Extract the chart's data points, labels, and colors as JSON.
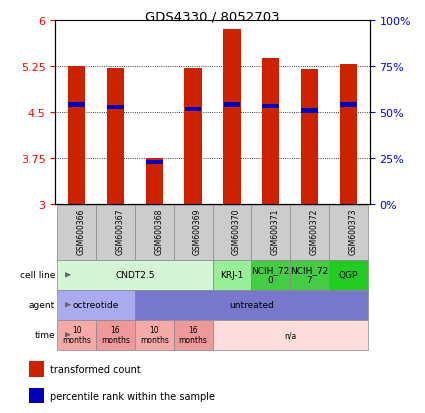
{
  "title": "GDS4330 / 8052703",
  "samples": [
    "GSM600366",
    "GSM600367",
    "GSM600368",
    "GSM600369",
    "GSM600370",
    "GSM600371",
    "GSM600372",
    "GSM600373"
  ],
  "bar_values": [
    5.25,
    5.22,
    3.75,
    5.22,
    5.85,
    5.38,
    5.2,
    5.28
  ],
  "percentile_values": [
    4.62,
    4.58,
    3.68,
    4.55,
    4.62,
    4.6,
    4.52,
    4.62
  ],
  "ymin": 3.0,
  "ymax": 6.0,
  "yticks_left": [
    3,
    3.75,
    4.5,
    5.25,
    6
  ],
  "yticks_right_pos": [
    3.0,
    3.75,
    4.5,
    5.25,
    6.0
  ],
  "ytick_labels_right": [
    "0%",
    "25%",
    "50%",
    "75%",
    "100%"
  ],
  "bar_color": "#cc2200",
  "percentile_color": "#0000bb",
  "bar_width": 0.45,
  "cell_line_groups": [
    {
      "label": "CNDT2.5",
      "start": 0,
      "end": 4,
      "color": "#d6f5d6"
    },
    {
      "label": "KRJ-1",
      "start": 4,
      "end": 5,
      "color": "#99ee99"
    },
    {
      "label": "NCIH_72\n0",
      "start": 5,
      "end": 6,
      "color": "#44cc44"
    },
    {
      "label": "NCIH_72\n7",
      "start": 6,
      "end": 7,
      "color": "#44cc44"
    },
    {
      "label": "QGP",
      "start": 7,
      "end": 8,
      "color": "#22cc22"
    }
  ],
  "agent_groups": [
    {
      "label": "octreotide",
      "start": 0,
      "end": 2,
      "color": "#aaaaee"
    },
    {
      "label": "untreated",
      "start": 2,
      "end": 8,
      "color": "#7777cc"
    }
  ],
  "time_groups": [
    {
      "label": "10\nmonths",
      "start": 0,
      "end": 1,
      "color": "#f5aaaa"
    },
    {
      "label": "16\nmonths",
      "start": 1,
      "end": 2,
      "color": "#ee9999"
    },
    {
      "label": "10\nmonths",
      "start": 2,
      "end": 3,
      "color": "#f5aaaa"
    },
    {
      "label": "16\nmonths",
      "start": 3,
      "end": 4,
      "color": "#ee9999"
    },
    {
      "label": "n/a",
      "start": 4,
      "end": 8,
      "color": "#ffdddd"
    }
  ],
  "row_labels": [
    "cell line",
    "agent",
    "time"
  ],
  "legend_items": [
    {
      "label": "transformed count",
      "color": "#cc2200"
    },
    {
      "label": "percentile rank within the sample",
      "color": "#0000bb"
    }
  ]
}
